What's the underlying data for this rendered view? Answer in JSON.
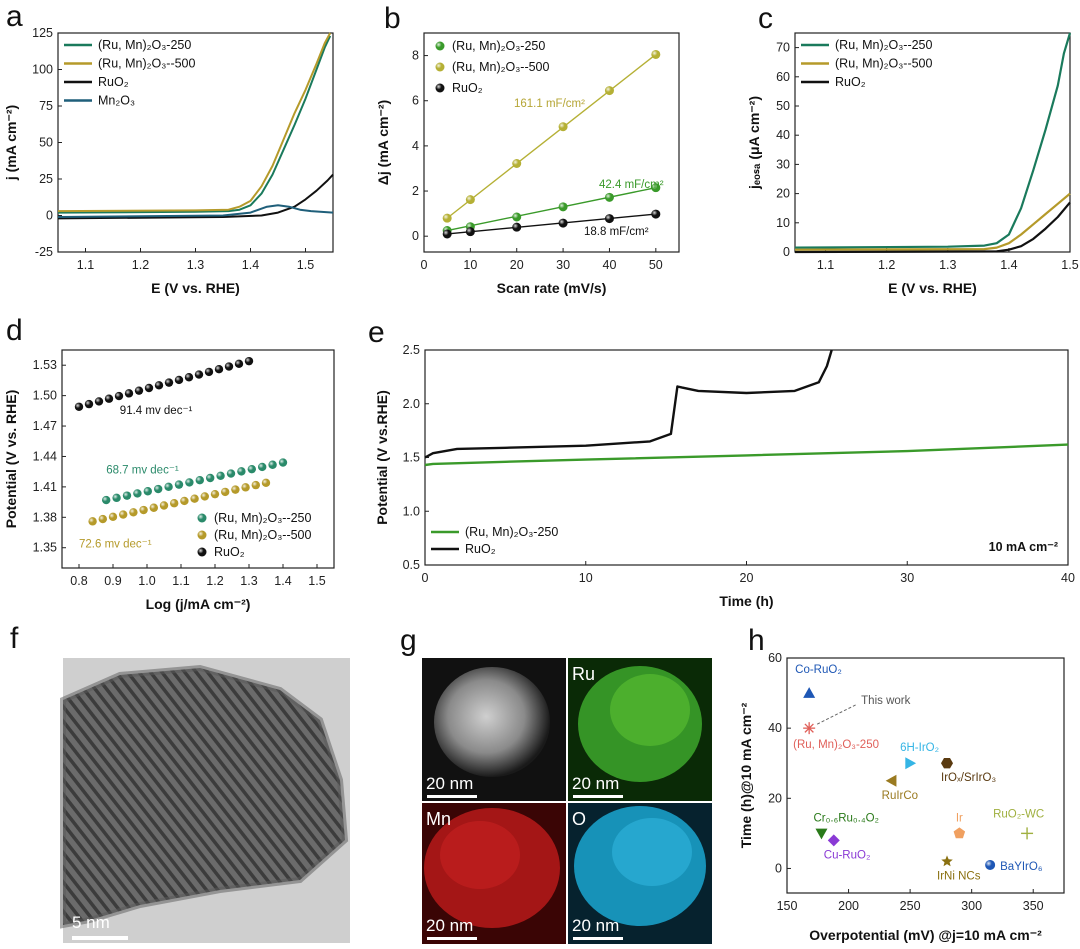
{
  "panels": {
    "a": "a",
    "b": "b",
    "c": "c",
    "d": "d",
    "e": "e",
    "f": "f",
    "g": "g",
    "h": "h"
  },
  "chart_data": [
    {
      "id": "a",
      "type": "line",
      "xlabel": "E (V vs. RHE)",
      "ylabel": "j (mA cm⁻²)",
      "xlim": [
        1.05,
        1.55
      ],
      "ylim": [
        -25,
        125
      ],
      "xticks": [
        "1.1",
        "1.2",
        "1.3",
        "1.4",
        "1.5"
      ],
      "yticks": [
        "-25",
        "0",
        "25",
        "50",
        "75",
        "100",
        "125"
      ],
      "series": [
        {
          "name": "(Ru, Mn)₂O₃-250",
          "color": "#1a7a5c",
          "x": [
            1.05,
            1.3,
            1.36,
            1.38,
            1.4,
            1.42,
            1.44,
            1.46,
            1.48,
            1.5,
            1.52,
            1.535,
            1.545
          ],
          "y": [
            2,
            2.5,
            3,
            4,
            7,
            15,
            28,
            45,
            62,
            80,
            100,
            115,
            123
          ]
        },
        {
          "name": "(Ru, Mn)₂O₃--500",
          "color": "#b59a2a",
          "x": [
            1.05,
            1.3,
            1.36,
            1.38,
            1.4,
            1.42,
            1.44,
            1.46,
            1.48,
            1.5,
            1.52,
            1.535,
            1.545
          ],
          "y": [
            3,
            3.5,
            4,
            6,
            10,
            20,
            34,
            52,
            70,
            86,
            104,
            118,
            125
          ]
        },
        {
          "name": "RuO₂",
          "color": "#111111",
          "x": [
            1.05,
            1.35,
            1.42,
            1.45,
            1.48,
            1.5,
            1.52,
            1.54,
            1.55
          ],
          "y": [
            -2,
            -1,
            0,
            2,
            6,
            11,
            17,
            24,
            28
          ]
        },
        {
          "name": "Mn₂O₃",
          "color": "#1f5f7a",
          "x": [
            1.05,
            1.35,
            1.4,
            1.43,
            1.45,
            1.47,
            1.49,
            1.51,
            1.55
          ],
          "y": [
            -1,
            0,
            2,
            6,
            7,
            6,
            4,
            3,
            2
          ]
        }
      ]
    },
    {
      "id": "b",
      "type": "scatter",
      "xlabel": "Scan rate (mV/s)",
      "ylabel": "Δj (mA cm⁻²)",
      "xlim": [
        0,
        55
      ],
      "ylim": [
        -0.7,
        9
      ],
      "xticks": [
        "0",
        "10",
        "20",
        "30",
        "40",
        "50"
      ],
      "yticks": [
        "0",
        "2",
        "4",
        "6",
        "8"
      ],
      "x": [
        5,
        10,
        20,
        30,
        40,
        50
      ],
      "series": [
        {
          "name": "(Ru, Mn)₂O₃-250",
          "color": "#3a9a2a",
          "values": [
            0.25,
            0.42,
            0.85,
            1.3,
            1.72,
            2.15
          ]
        },
        {
          "name": "(Ru, Mn)₂O₃--500",
          "color": "#b5b035",
          "values": [
            0.8,
            1.62,
            3.22,
            4.85,
            6.45,
            8.05
          ]
        },
        {
          "name": "RuO₂",
          "color": "#111111",
          "values": [
            0.1,
            0.2,
            0.4,
            0.58,
            0.78,
            0.98
          ]
        }
      ],
      "annotations": [
        "161.1 mF/cm²",
        "42.4 mF/cm²",
        "18.8 mF/cm²"
      ]
    },
    {
      "id": "c",
      "type": "line",
      "xlabel": "E (V vs. RHE)",
      "ylabel": "jₑₒₛₐ (μA cm⁻²)",
      "xlim": [
        1.05,
        1.5
      ],
      "ylim": [
        0,
        75
      ],
      "xticks": [
        "1.1",
        "1.2",
        "1.3",
        "1.4",
        "1.5"
      ],
      "yticks": [
        "0",
        "10",
        "20",
        "30",
        "40",
        "50",
        "60",
        "70"
      ],
      "series": [
        {
          "name": "(Ru, Mn)₂O₃--250",
          "color": "#1a7a5c",
          "x": [
            1.05,
            1.3,
            1.36,
            1.38,
            1.4,
            1.42,
            1.44,
            1.46,
            1.48,
            1.49,
            1.5
          ],
          "y": [
            1.5,
            1.8,
            2.2,
            3,
            6,
            15,
            28,
            42,
            57,
            68,
            75
          ]
        },
        {
          "name": "(Ru, Mn)₂O₃--500",
          "color": "#b59a2a",
          "x": [
            1.05,
            1.36,
            1.38,
            1.4,
            1.42,
            1.44,
            1.46,
            1.48,
            1.5
          ],
          "y": [
            0.8,
            1,
            1.5,
            3,
            6,
            9.5,
            13,
            16.5,
            20
          ]
        },
        {
          "name": "RuO₂",
          "color": "#111111",
          "x": [
            1.05,
            1.38,
            1.4,
            1.42,
            1.44,
            1.46,
            1.48,
            1.5
          ],
          "y": [
            0,
            0.2,
            0.8,
            2,
            4.5,
            8,
            12,
            17
          ]
        }
      ]
    },
    {
      "id": "d",
      "type": "scatter",
      "xlabel": "Log (j/mA cm⁻²)",
      "ylabel": "Potential (V vs. RHE)",
      "xlim": [
        0.75,
        1.55
      ],
      "ylim": [
        1.33,
        1.545
      ],
      "xticks": [
        "0.8",
        "0.9",
        "1.0",
        "1.1",
        "1.2",
        "1.3",
        "1.4",
        "1.5"
      ],
      "yticks": [
        "1.35",
        "1.38",
        "1.41",
        "1.44",
        "1.47",
        "1.50",
        "1.53"
      ],
      "series": [
        {
          "name": "(Ru, Mn)₂O₃--250",
          "color": "#2a8a6a",
          "x_start": 0.88,
          "x_end": 1.4,
          "y_start": 1.397,
          "y_end": 1.434,
          "n": 18
        },
        {
          "name": "(Ru, Mn)₂O₃--500",
          "color": "#b59a2a",
          "x_start": 0.84,
          "x_end": 1.35,
          "y_start": 1.376,
          "y_end": 1.414,
          "n": 18
        },
        {
          "name": "RuO₂",
          "color": "#111111",
          "x_start": 0.8,
          "x_end": 1.3,
          "y_start": 1.489,
          "y_end": 1.534,
          "n": 18
        }
      ],
      "annotations": [
        "91.4 mv dec⁻¹",
        "68.7 mv dec⁻¹",
        "72.6 mv dec⁻¹"
      ]
    },
    {
      "id": "e",
      "type": "line",
      "xlabel": "Time (h)",
      "ylabel": "Potential (V vs.RHE)",
      "xlim": [
        0,
        40
      ],
      "ylim": [
        0.5,
        2.5
      ],
      "xticks": [
        "0",
        "10",
        "20",
        "30",
        "40"
      ],
      "yticks": [
        "0.5",
        "1.0",
        "1.5",
        "2.0",
        "2.5"
      ],
      "series": [
        {
          "name": "(Ru, Mn)₂O₃-250",
          "color": "#3a9a2a",
          "x": [
            0,
            0.5,
            5,
            10,
            20,
            30,
            40
          ],
          "y": [
            1.43,
            1.44,
            1.46,
            1.48,
            1.52,
            1.56,
            1.62
          ]
        },
        {
          "name": "RuO₂",
          "color": "#111111",
          "x": [
            0,
            0.5,
            2,
            5,
            10,
            14,
            15.3,
            15.7,
            16.0,
            17,
            20,
            23,
            24.5,
            25,
            25.3
          ],
          "y": [
            1.5,
            1.54,
            1.58,
            1.59,
            1.61,
            1.65,
            1.72,
            2.16,
            2.15,
            2.12,
            2.1,
            2.12,
            2.2,
            2.35,
            2.5
          ]
        }
      ],
      "annotation": "10 mA cm⁻²"
    },
    {
      "id": "h",
      "type": "scatter",
      "xlabel": "Overpotential (mV) @j=10 mA cm⁻²",
      "ylabel": "Time (h)@10 mA cm⁻²",
      "xlim": [
        150,
        375
      ],
      "ylim": [
        -7,
        60
      ],
      "xticks": [
        "150",
        "200",
        "250",
        "300",
        "350"
      ],
      "yticks": [
        "0",
        "20",
        "40",
        "60"
      ],
      "points": [
        {
          "name": "Co-RuO₂",
          "x": 168,
          "y": 50,
          "color": "#1e57b5",
          "marker": "triangle-up"
        },
        {
          "name": "(Ru, Mn)₂O₃-250",
          "x": 168,
          "y": 40,
          "color": "#e0605a",
          "marker": "asterisk"
        },
        {
          "name": "6H-IrO₂",
          "x": 250,
          "y": 30,
          "color": "#35b5e5",
          "marker": "triangle-right"
        },
        {
          "name": "IrOₓ/SrIrO₃",
          "x": 280,
          "y": 30,
          "color": "#5a3a10",
          "marker": "hexagon"
        },
        {
          "name": "RuIrCo",
          "x": 235,
          "y": 25,
          "color": "#9a7a20",
          "marker": "triangle-left"
        },
        {
          "name": "Ir",
          "x": 290,
          "y": 10,
          "color": "#f0a060",
          "marker": "pentagon"
        },
        {
          "name": "RuO₂-WC",
          "x": 345,
          "y": 10,
          "color": "#a0b040",
          "marker": "plus"
        },
        {
          "name": "Cr₀.₆Ru₀.₄O₂",
          "x": 178,
          "y": 10,
          "color": "#2a7a1a",
          "marker": "triangle-down"
        },
        {
          "name": "Cu-RuO₂",
          "x": 188,
          "y": 8,
          "color": "#8a3ad5",
          "marker": "diamond"
        },
        {
          "name": "IrNi NCs",
          "x": 280,
          "y": 2,
          "color": "#8a7010",
          "marker": "star"
        },
        {
          "name": "BaYIrO₆",
          "x": 315,
          "y": 1,
          "color": "#1e57b5",
          "marker": "circle"
        }
      ],
      "annotation": "This work"
    }
  ],
  "images": {
    "f": {
      "scale": "5 nm"
    },
    "g": {
      "maps": [
        {
          "label": "",
          "scale": "20 nm",
          "color": "#7a7a7a"
        },
        {
          "label": "Ru",
          "scale": "20 nm",
          "color": "#3aa02a"
        },
        {
          "label": "Mn",
          "scale": "20 nm",
          "color": "#b01818"
        },
        {
          "label": "O",
          "scale": "20 nm",
          "color": "#1a9ec8"
        }
      ]
    }
  }
}
